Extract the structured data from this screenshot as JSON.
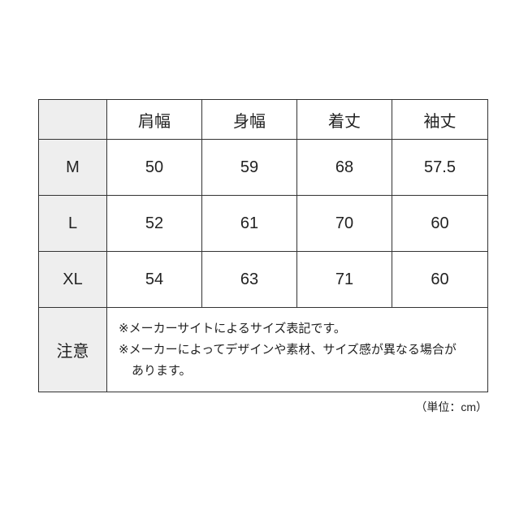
{
  "table": {
    "headers": [
      "",
      "肩幅",
      "身幅",
      "着丈",
      "袖丈"
    ],
    "rows": [
      {
        "size": "M",
        "values": [
          "50",
          "59",
          "68",
          "57.5"
        ]
      },
      {
        "size": "L",
        "values": [
          "52",
          "61",
          "70",
          "60"
        ]
      },
      {
        "size": "XL",
        "values": [
          "54",
          "63",
          "71",
          "60"
        ]
      }
    ],
    "note_label": "注意",
    "notes": [
      "※メーカーサイトによるサイズ表記です。",
      "※メーカーによってデザインや素材、サイズ感が異なる場合が",
      "あります。"
    ],
    "header_bg": "#eeeeee"
  },
  "unit": "（単位：cm）"
}
